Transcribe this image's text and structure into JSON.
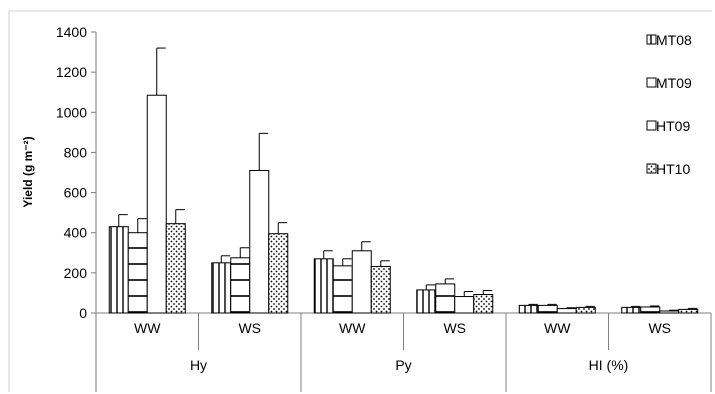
{
  "chart_data": {
    "type": "bar",
    "title": "",
    "ylabel": "Yield (g m⁻²)",
    "ylim": [
      0,
      1400
    ],
    "yticks": [
      0,
      200,
      400,
      600,
      800,
      1000,
      1200,
      1400
    ],
    "grid": false,
    "legend_position": "right",
    "groups": [
      {
        "label": "Hy",
        "categories": [
          "WW",
          "WS"
        ]
      },
      {
        "label": "Py",
        "categories": [
          "WW",
          "WS"
        ]
      },
      {
        "label": "HI (%)",
        "categories": [
          "WW",
          "WS"
        ]
      }
    ],
    "series": [
      {
        "name": "MT08",
        "pattern": "vertical-lines",
        "values": [
          430,
          250,
          270,
          115,
          38,
          28
        ],
        "errors": [
          60,
          35,
          40,
          25,
          5,
          5
        ]
      },
      {
        "name": "MT09",
        "pattern": "horizontal-lines",
        "values": [
          400,
          275,
          235,
          145,
          38,
          30
        ],
        "errors": [
          70,
          50,
          35,
          25,
          5,
          5
        ]
      },
      {
        "name": "HT09",
        "pattern": "none",
        "values": [
          1085,
          710,
          310,
          82,
          22,
          10
        ],
        "errors": [
          235,
          185,
          45,
          25,
          4,
          4
        ]
      },
      {
        "name": "HT10",
        "pattern": "dots",
        "values": [
          445,
          395,
          232,
          92,
          28,
          18
        ],
        "errors": [
          70,
          55,
          28,
          20,
          5,
          5
        ]
      }
    ]
  }
}
